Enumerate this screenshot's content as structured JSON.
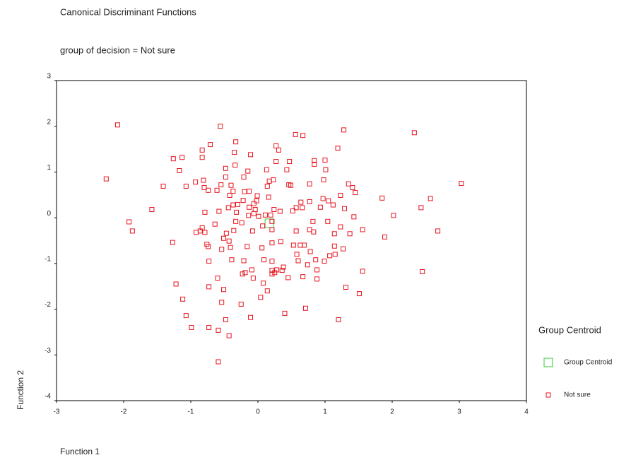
{
  "chart_data": {
    "type": "scatter",
    "title": "Canonical Discriminant Functions",
    "subtitle": "group of decision = Not sure",
    "x_label": "Function 1",
    "y_label": "Function 2",
    "legend_title": "Group Centroid",
    "legend": "right",
    "xlim": [
      -3,
      4
    ],
    "xticks": [
      -3,
      -2,
      -1,
      0,
      1,
      2,
      3,
      4
    ],
    "ylim": [
      -4,
      3
    ],
    "yticks": [
      -4,
      -3,
      -2,
      -1,
      0,
      1,
      2,
      3
    ],
    "series": [
      {
        "name": "Group Centroid",
        "color": "#33cc33",
        "x": [
          0.17
        ],
        "values": [
          -0.12
        ]
      },
      {
        "name": "Not sure",
        "color": "#e8141e",
        "x": [
          -2.09,
          -0.56,
          -2.26,
          -1.92,
          -1.87,
          -1.58,
          -1.41,
          -1.27,
          -1.26,
          -1.13,
          -1.17,
          -1.07,
          -0.93,
          -0.81,
          -0.83,
          -0.83,
          -0.71,
          -0.8,
          -0.74,
          -0.79,
          -0.86,
          -0.79,
          -0.83,
          -0.92,
          -0.76,
          -0.74,
          -0.73,
          -1.22,
          -1.12,
          -1.07,
          -0.99,
          -0.73,
          -0.73,
          -0.59,
          -0.59,
          -0.6,
          -0.51,
          -0.54,
          -0.48,
          -0.43,
          -0.64,
          -0.58,
          -0.61,
          -0.55,
          -0.48,
          -0.48,
          -0.54,
          -0.51,
          -0.47,
          -0.43,
          -0.44,
          -0.42,
          -0.4,
          -0.37,
          -0.37,
          -0.35,
          -0.34,
          -0.33,
          -0.41,
          -0.39,
          -0.36,
          -0.33,
          -0.32,
          -0.3,
          -0.24,
          -0.22,
          -0.21,
          -0.2,
          -0.19,
          -0.23,
          -0.21,
          -0.25,
          -0.16,
          -0.15,
          -0.14,
          -0.13,
          -0.13,
          -0.11,
          -0.11,
          -0.09,
          -0.07,
          -0.08,
          -0.06,
          -0.06,
          -0.04,
          -0.02,
          -0.01,
          0.01,
          0.06,
          0.07,
          0.09,
          0.08,
          0.04,
          0.14,
          0.11,
          0.13,
          0.14,
          0.16,
          0.17,
          0.19,
          0.21,
          0.21,
          0.21,
          0.21,
          0.21,
          0.21,
          0.25,
          0.28,
          0.24,
          0.23,
          0.27,
          0.27,
          0.31,
          0.33,
          0.34,
          0.36,
          0.38,
          0.4,
          0.43,
          0.45,
          0.46,
          0.47,
          0.49,
          0.52,
          0.57,
          0.53,
          0.57,
          0.56,
          0.58,
          0.6,
          0.63,
          0.66,
          0.67,
          0.64,
          0.67,
          0.69,
          0.71,
          0.74,
          0.77,
          0.77,
          0.77,
          0.78,
          0.82,
          0.83,
          0.84,
          0.84,
          0.86,
          0.88,
          0.88,
          0.93,
          0.97,
          0.98,
          0.99,
          1.0,
          1.01,
          1.04,
          1.05,
          1.07,
          1.12,
          1.14,
          1.14,
          1.15,
          1.19,
          1.2,
          1.23,
          1.23,
          1.27,
          1.29,
          1.28,
          1.31,
          1.35,
          1.37,
          1.41,
          1.45,
          1.43,
          1.51,
          1.56,
          1.56,
          1.85,
          1.89,
          2.02,
          2.33,
          2.43,
          2.45,
          2.57,
          2.68,
          3.03
        ],
        "values": [
          2.03,
          2.0,
          0.85,
          -0.09,
          -0.29,
          0.18,
          0.69,
          -0.54,
          1.29,
          1.32,
          1.03,
          0.69,
          0.78,
          0.82,
          1.48,
          1.32,
          1.6,
          0.66,
          0.6,
          0.12,
          -0.29,
          -0.32,
          -0.22,
          -0.32,
          -0.58,
          -0.63,
          -0.95,
          -1.45,
          -1.78,
          -2.14,
          -2.4,
          -1.51,
          -2.4,
          -2.46,
          -3.15,
          -1.32,
          -1.57,
          -1.85,
          -2.23,
          -2.58,
          -0.14,
          0.14,
          0.6,
          0.72,
          0.89,
          1.08,
          -0.69,
          -0.45,
          -0.34,
          -0.51,
          0.22,
          0.49,
          0.71,
          0.58,
          0.28,
          1.43,
          1.15,
          1.66,
          -0.65,
          -0.92,
          -0.28,
          -0.08,
          0.12,
          0.29,
          -0.11,
          0.38,
          0.89,
          0.57,
          -1.2,
          -1.23,
          -0.94,
          -1.89,
          -0.63,
          1.02,
          0.05,
          0.23,
          0.58,
          1.38,
          -2.18,
          -1.14,
          -1.32,
          -0.29,
          0.31,
          0.09,
          0.18,
          0.37,
          0.48,
          0.03,
          -0.66,
          -0.18,
          -0.92,
          -1.43,
          -1.74,
          -1.6,
          0.06,
          1.05,
          0.69,
          0.45,
          0.8,
          0.06,
          -0.08,
          -0.26,
          -0.55,
          -0.95,
          -1.15,
          -1.23,
          -1.2,
          -1.14,
          0.18,
          0.83,
          1.23,
          1.57,
          1.48,
          0.14,
          -0.52,
          -1.15,
          -1.08,
          -2.09,
          1.05,
          -1.31,
          0.72,
          1.23,
          0.71,
          0.15,
          0.22,
          -0.6,
          -0.29,
          1.82,
          -0.8,
          -0.94,
          -0.6,
          0.22,
          1.8,
          0.34,
          -1.29,
          -0.6,
          -1.98,
          -1.03,
          -0.26,
          0.74,
          0.35,
          -0.74,
          -0.08,
          -0.31,
          1.25,
          1.17,
          -0.92,
          -1.14,
          -1.34,
          0.23,
          0.42,
          0.83,
          -0.95,
          1.26,
          1.05,
          -0.08,
          0.37,
          -0.83,
          0.28,
          -0.62,
          -0.35,
          -0.8,
          1.52,
          -2.23,
          0.49,
          -0.2,
          -0.68,
          0.2,
          1.92,
          -1.52,
          0.74,
          -0.35,
          0.66,
          0.55,
          0.02,
          -1.66,
          -0.26,
          -1.17,
          0.43,
          -0.42,
          0.05,
          1.86,
          0.22,
          -1.18,
          0.42,
          -0.29,
          0.75
        ]
      }
    ]
  }
}
